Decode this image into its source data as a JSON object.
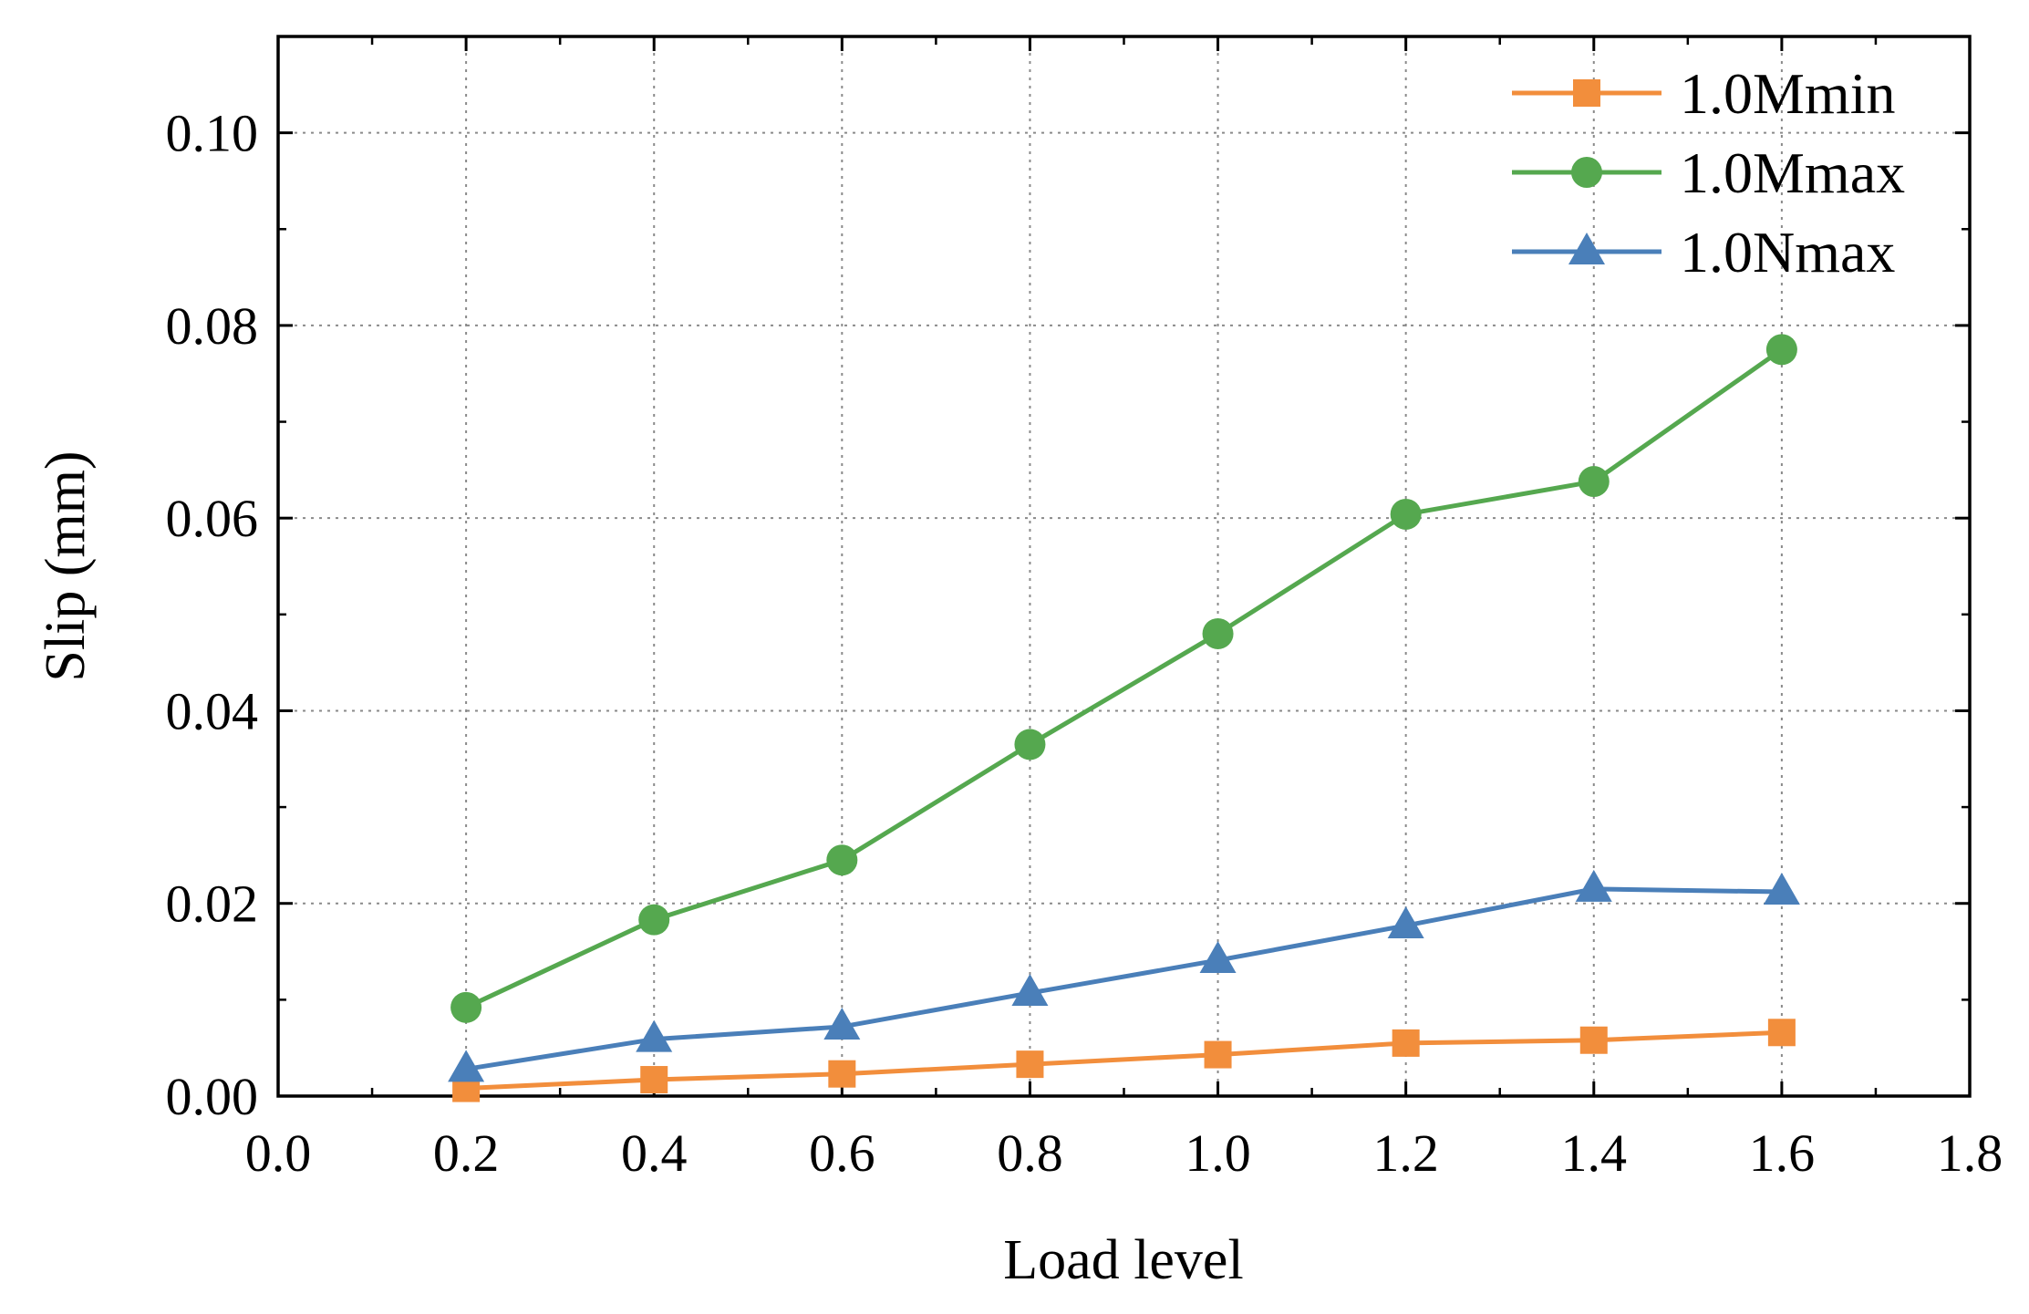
{
  "chart_data": {
    "type": "line",
    "title": "",
    "xlabel": "Load level",
    "ylabel": "Slip (mm)",
    "xlim": [
      0.0,
      1.8
    ],
    "ylim": [
      0.0,
      0.11
    ],
    "xticks": [
      0.0,
      0.2,
      0.4,
      0.6,
      0.8,
      1.0,
      1.2,
      1.4,
      1.6,
      1.8
    ],
    "xtick_labels": [
      "0.0",
      "0.2",
      "0.4",
      "0.6",
      "0.8",
      "1.0",
      "1.2",
      "1.4",
      "1.6",
      "1.8"
    ],
    "yticks": [
      0.0,
      0.02,
      0.04,
      0.06,
      0.08,
      0.1
    ],
    "ytick_labels": [
      "0.00",
      "0.02",
      "0.04",
      "0.06",
      "0.08",
      "0.10"
    ],
    "grid": true,
    "legend_position": "top-right",
    "x": [
      0.2,
      0.4,
      0.6,
      0.8,
      1.0,
      1.2,
      1.4,
      1.6
    ],
    "series": [
      {
        "name": "1.0Mmin",
        "marker": "square",
        "color": "#F28E3C",
        "values": [
          0.0008,
          0.0017,
          0.0023,
          0.0033,
          0.0043,
          0.0055,
          0.0058,
          0.0066
        ]
      },
      {
        "name": "1.0Mmax",
        "marker": "circle",
        "color": "#55A84F",
        "values": [
          0.0092,
          0.0183,
          0.0245,
          0.0365,
          0.048,
          0.0604,
          0.0638,
          0.0775
        ]
      },
      {
        "name": "1.0Nmax",
        "marker": "triangle",
        "color": "#4A7FB9",
        "values": [
          0.0028,
          0.0059,
          0.0072,
          0.0107,
          0.0141,
          0.0177,
          0.0215,
          0.0212
        ]
      }
    ]
  }
}
